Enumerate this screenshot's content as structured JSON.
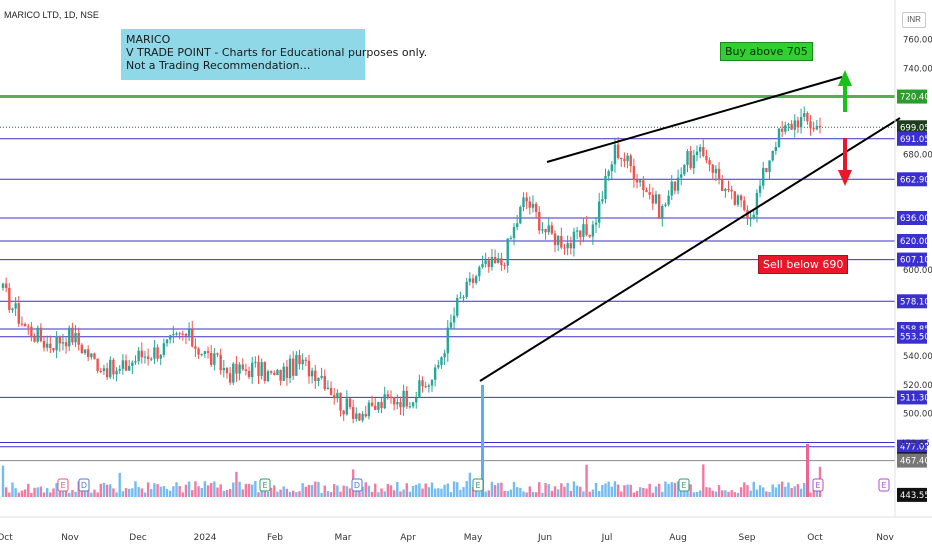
{
  "header": {
    "symbol_title": "MARICO LTD, 1D, NSE",
    "currency": "INR"
  },
  "annotation": {
    "lines": [
      "MARICO",
      "V TRADE POINT - Charts for Educational purposes only.",
      "Not a Trading Recommendation…"
    ]
  },
  "buy_label": "Buy above 705",
  "sell_label": "Sell below 690",
  "colors": {
    "up": "#26a69a",
    "down": "#ef5350",
    "level_line": "#3a2fd0",
    "level_tag": "#3a2fd0",
    "green_level": "#2e9b2e",
    "trendline": "#000000",
    "volume_up": "#5ab0ef",
    "volume_down": "#f06290"
  },
  "chart_data": {
    "type": "candlestick",
    "x_axis_labels": [
      "Oct",
      "Nov",
      "Dec",
      "2024",
      "Feb",
      "Mar",
      "Apr",
      "May",
      "Jun",
      "Jul",
      "Aug",
      "Sep",
      "Oct",
      "Nov"
    ],
    "y_ticks": [
      760,
      740,
      680,
      600,
      540,
      520,
      500
    ],
    "y_range": [
      440,
      775
    ],
    "levels": [
      {
        "value": 720.4,
        "label": "720.40",
        "kind": "green"
      },
      {
        "value": 699.05,
        "label": "699.05",
        "kind": "current"
      },
      {
        "value": 691.05,
        "label": "691.05",
        "kind": "blue"
      },
      {
        "value": 662.9,
        "label": "662.90",
        "kind": "blue"
      },
      {
        "value": 636.0,
        "label": "636.00",
        "kind": "blue"
      },
      {
        "value": 620.0,
        "label": "620.00",
        "kind": "blue"
      },
      {
        "value": 607.1,
        "label": "607.10",
        "kind": "blue"
      },
      {
        "value": 578.1,
        "label": "578.10",
        "kind": "blue"
      },
      {
        "value": 558.85,
        "label": "558.85",
        "kind": "blue"
      },
      {
        "value": 553.5,
        "label": "553.50",
        "kind": "blue"
      },
      {
        "value": 511.3,
        "label": "511.30",
        "kind": "blue"
      },
      {
        "value": 477.05,
        "label": "477.05",
        "kind": "blue"
      },
      {
        "value": 479.65,
        "label": "479.65",
        "kind": "plain"
      },
      {
        "value": 468.3,
        "label": "468.30",
        "kind": "dark"
      },
      {
        "value": 467.4,
        "label": "467.40",
        "kind": "gray"
      },
      {
        "value": 443.55,
        "label": "443.55",
        "kind": "dark"
      }
    ],
    "anchor_points": [
      {
        "x": "Oct 2023",
        "y": 585
      },
      {
        "x": "early Oct",
        "y": 560
      },
      {
        "x": "mid Oct",
        "y": 548
      },
      {
        "x": "late Oct",
        "y": 555
      },
      {
        "x": "Nov",
        "y": 537
      },
      {
        "x": "mid Nov",
        "y": 528
      },
      {
        "x": "Dec",
        "y": 540
      },
      {
        "x": "mid Dec",
        "y": 545
      },
      {
        "x": "late Dec",
        "y": 555
      },
      {
        "x": "2024",
        "y": 540
      },
      {
        "x": "mid Jan",
        "y": 528
      },
      {
        "x": "Feb",
        "y": 532
      },
      {
        "x": "mid Feb",
        "y": 525
      },
      {
        "x": "late Feb",
        "y": 535
      },
      {
        "x": "Mar",
        "y": 528
      },
      {
        "x": "mid Mar",
        "y": 505
      },
      {
        "x": "Apr",
        "y": 500
      },
      {
        "x": "mid Apr",
        "y": 510
      },
      {
        "x": "late Apr",
        "y": 512
      },
      {
        "x": "May",
        "y": 525
      },
      {
        "x": "early May",
        "y": 575
      },
      {
        "x": "mid May",
        "y": 600
      },
      {
        "x": "late May",
        "y": 605
      },
      {
        "x": "Jun",
        "y": 650
      },
      {
        "x": "mid Jun",
        "y": 625
      },
      {
        "x": "late Jun",
        "y": 618
      },
      {
        "x": "Jul",
        "y": 630
      },
      {
        "x": "mid Jul",
        "y": 685
      },
      {
        "x": "late Jul",
        "y": 665
      },
      {
        "x": "early Aug",
        "y": 640
      },
      {
        "x": "Aug",
        "y": 675
      },
      {
        "x": "mid Aug",
        "y": 680
      },
      {
        "x": "late Aug",
        "y": 650
      },
      {
        "x": "Sep",
        "y": 640
      },
      {
        "x": "mid Sep",
        "y": 690
      },
      {
        "x": "late Sep",
        "y": 705
      },
      {
        "x": "Oct 2024",
        "y": 699
      }
    ],
    "trendlines": [
      {
        "from": {
          "x": "Jun",
          "y": 668
        },
        "to": {
          "x": "Oct 2024",
          "y": 730
        }
      },
      {
        "from": {
          "x": "May",
          "y": 511
        },
        "to": {
          "x": "Oct 2024+",
          "y": 695
        }
      }
    ]
  }
}
